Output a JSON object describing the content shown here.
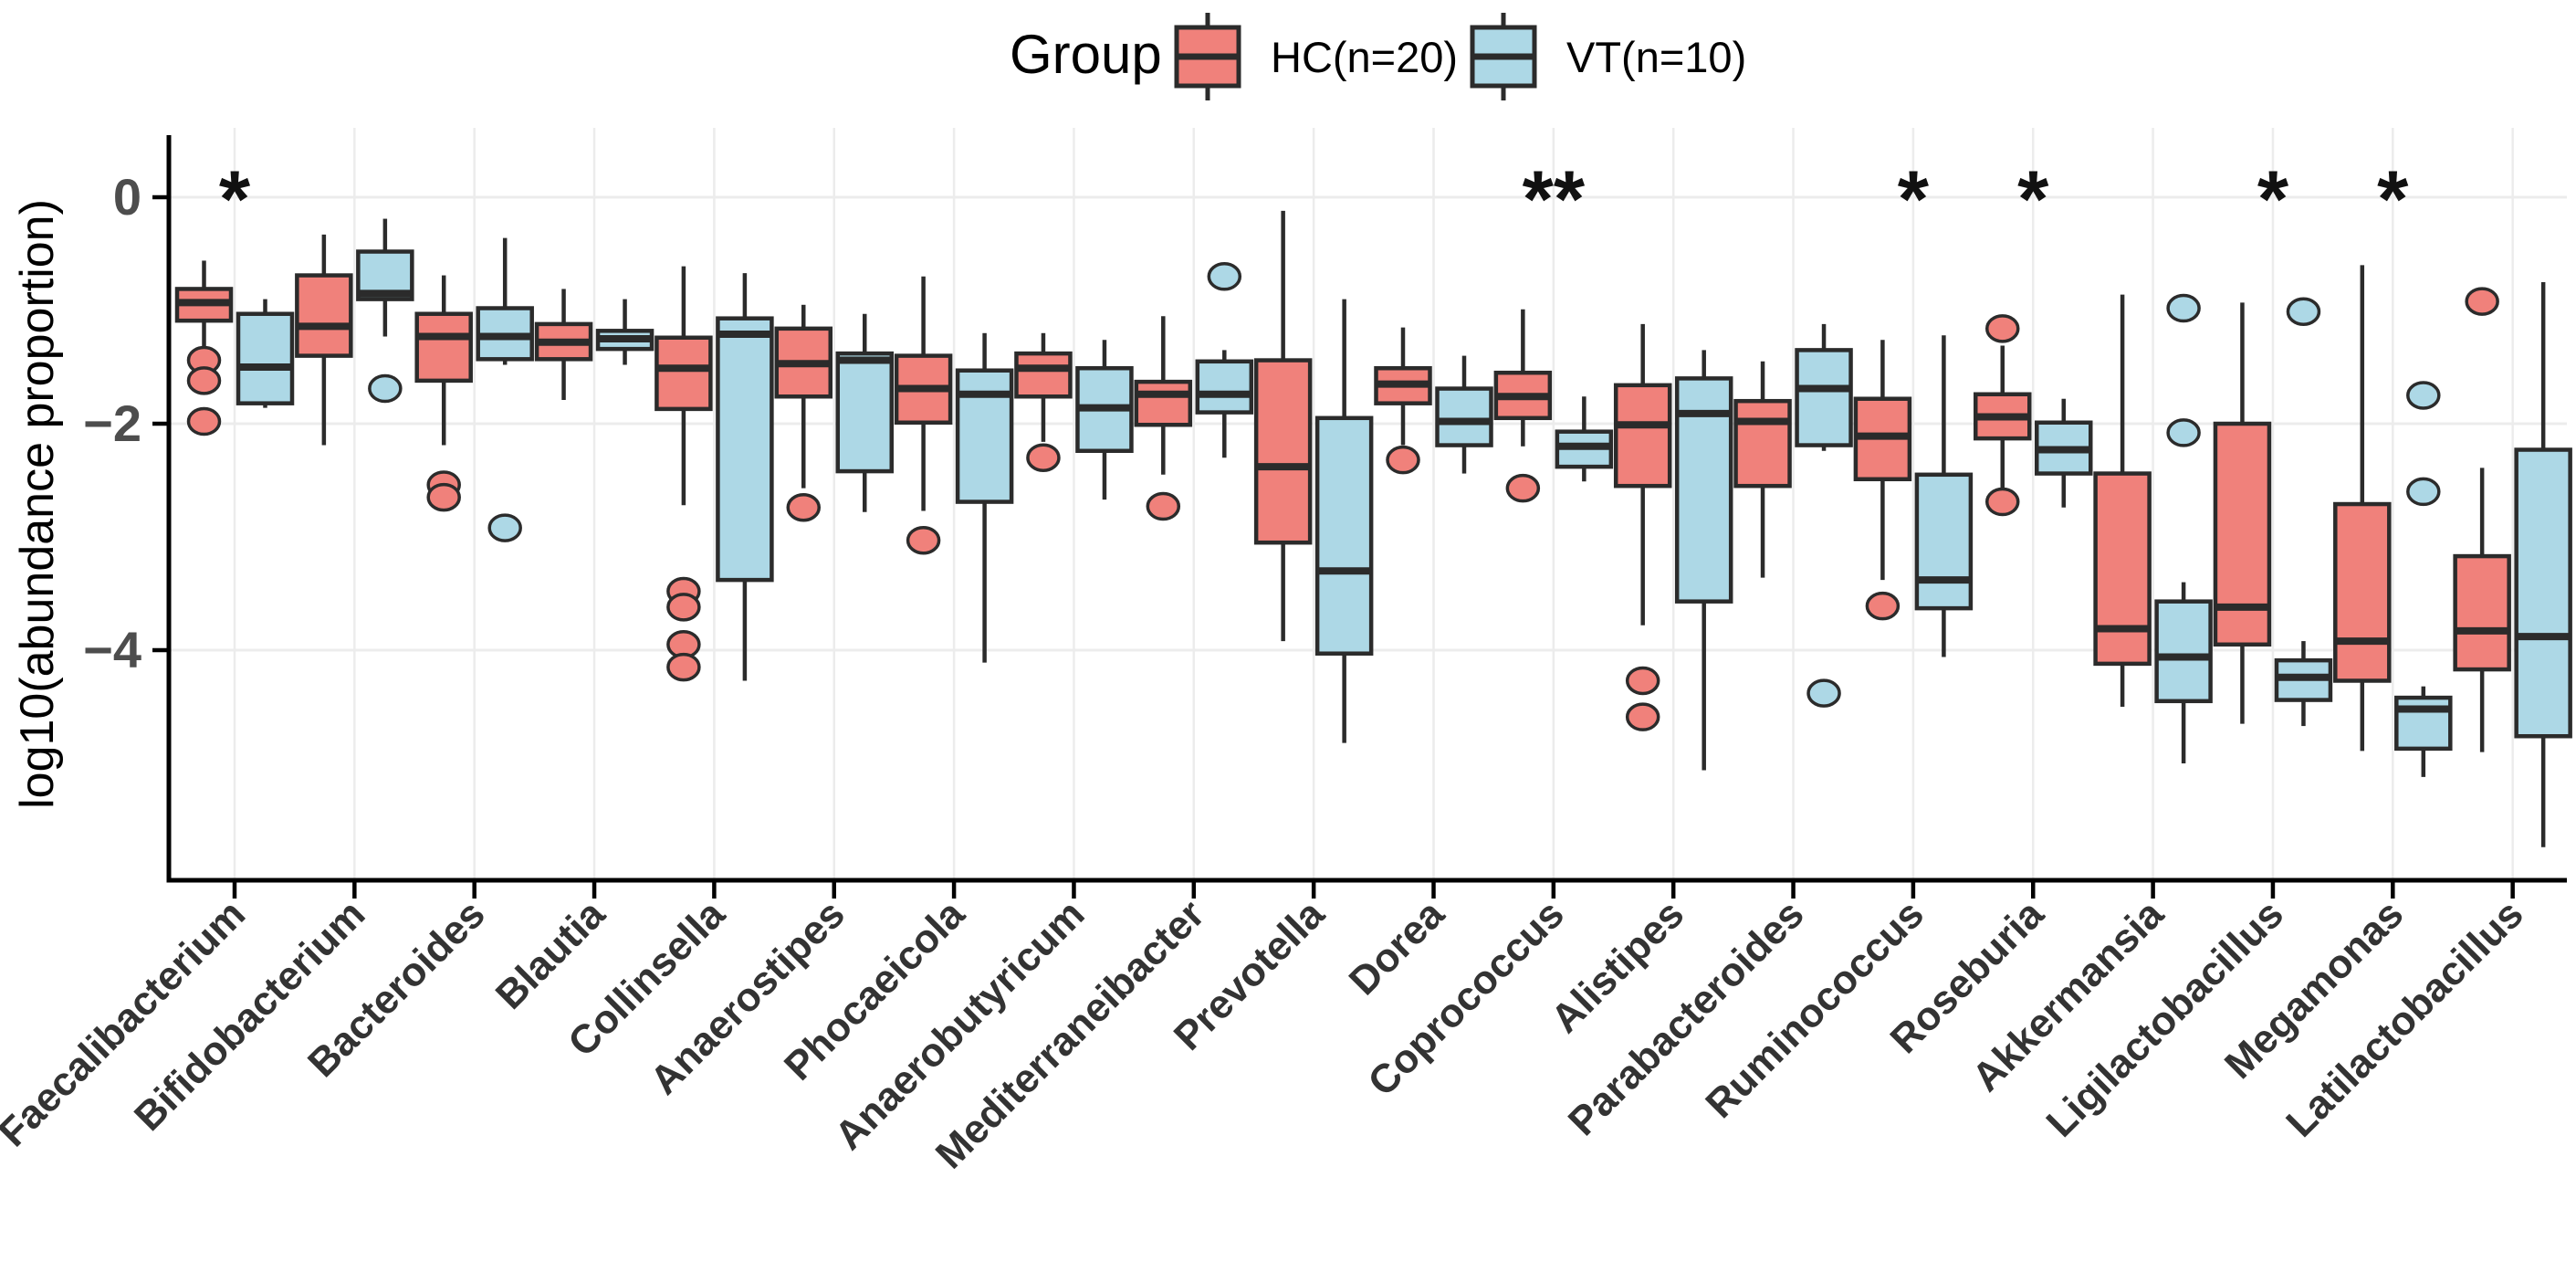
{
  "legend": {
    "title": "Group",
    "position": "top",
    "items": [
      {
        "label": "HC(n=20)",
        "color": "#F0817B"
      },
      {
        "label": "VT(n=10)",
        "color": "#ADD8E6"
      }
    ]
  },
  "axes": {
    "y_title": "log10(abundance proportion)",
    "y_tick_labels": [
      "0",
      "−2",
      "−4"
    ],
    "y_tick_values": [
      0,
      -2,
      -4
    ],
    "grid_color": "#ececec",
    "axis_color": "#000000",
    "tick_label_color": "#4d4d4d",
    "x_label_color": "#333333"
  },
  "chart_data": {
    "type": "boxplot",
    "title": "",
    "xlabel": "",
    "ylabel": "log10(abundance proportion)",
    "ylim": [
      -6.05,
      0.6
    ],
    "grid": "major-only",
    "legend_position": "top",
    "box_border_color": "#2b2b2b",
    "categories": [
      "Faecalibacterium",
      "Bifidobacterium",
      "Bacteroides",
      "Blautia",
      "Collinsella",
      "Anaerostipes",
      "Phocaeicola",
      "Anaerobutyricum",
      "Mediterraneibacter",
      "Prevotella",
      "Dorea",
      "Coprococcus",
      "Alistipes",
      "Parabacteroides",
      "Ruminococcus",
      "Roseburia",
      "Akkermansia",
      "Ligilactobacillus",
      "Megamonas",
      "Latilactobacillus"
    ],
    "significance": [
      "*",
      "",
      "",
      "",
      "",
      "",
      "",
      "",
      "",
      "",
      "",
      "**",
      "",
      "",
      "*",
      "*",
      "",
      "*",
      "*",
      ""
    ],
    "series": [
      {
        "name": "HC(n=20)",
        "color": "#F0817B",
        "boxes": [
          {
            "median": -0.93,
            "q1": -1.09,
            "q3": -0.81,
            "whislo": -1.34,
            "whishi": -0.56,
            "outliers": [
              -1.44,
              -1.62,
              -1.98
            ]
          },
          {
            "median": -1.14,
            "q1": -1.4,
            "q3": -0.69,
            "whislo": -2.19,
            "whishi": -0.33,
            "outliers": []
          },
          {
            "median": -1.23,
            "q1": -1.62,
            "q3": -1.03,
            "whislo": -2.19,
            "whishi": -0.69,
            "outliers": [
              -2.54,
              -2.65
            ]
          },
          {
            "median": -1.28,
            "q1": -1.43,
            "q3": -1.12,
            "whislo": -1.79,
            "whishi": -0.81,
            "outliers": []
          },
          {
            "median": -1.51,
            "q1": -1.87,
            "q3": -1.24,
            "whislo": -2.72,
            "whishi": -0.61,
            "outliers": [
              -3.48,
              -3.62,
              -3.95,
              -4.15
            ]
          },
          {
            "median": -1.47,
            "q1": -1.76,
            "q3": -1.16,
            "whislo": -2.57,
            "whishi": -0.95,
            "outliers": [
              -2.74
            ]
          },
          {
            "median": -1.69,
            "q1": -1.99,
            "q3": -1.4,
            "whislo": -2.77,
            "whishi": -0.7,
            "outliers": [
              -3.03
            ]
          },
          {
            "median": -1.51,
            "q1": -1.76,
            "q3": -1.38,
            "whislo": -2.16,
            "whishi": -1.2,
            "outliers": [
              -2.3
            ]
          },
          {
            "median": -1.74,
            "q1": -2.01,
            "q3": -1.63,
            "whislo": -2.45,
            "whishi": -1.05,
            "outliers": [
              -2.73
            ]
          },
          {
            "median": -2.38,
            "q1": -3.05,
            "q3": -1.44,
            "whislo": -3.92,
            "whishi": -0.12,
            "outliers": []
          },
          {
            "median": -1.65,
            "q1": -1.82,
            "q3": -1.51,
            "whislo": -2.19,
            "whishi": -1.15,
            "outliers": [
              -2.32
            ]
          },
          {
            "median": -1.76,
            "q1": -1.95,
            "q3": -1.55,
            "whislo": -2.2,
            "whishi": -0.99,
            "outliers": [
              -2.57
            ]
          },
          {
            "median": -2.01,
            "q1": -2.55,
            "q3": -1.66,
            "whislo": -3.78,
            "whishi": -1.12,
            "outliers": [
              -4.27,
              -4.59
            ]
          },
          {
            "median": -1.98,
            "q1": -2.55,
            "q3": -1.8,
            "whislo": -3.36,
            "whishi": -1.45,
            "outliers": []
          },
          {
            "median": -2.11,
            "q1": -2.49,
            "q3": -1.78,
            "whislo": -3.38,
            "whishi": -1.26,
            "outliers": [
              -3.61
            ]
          },
          {
            "median": -1.94,
            "q1": -2.13,
            "q3": -1.74,
            "whislo": -2.6,
            "whishi": -1.31,
            "outliers": [
              -1.16,
              -2.69
            ]
          },
          {
            "median": -3.81,
            "q1": -4.12,
            "q3": -2.44,
            "whislo": -4.5,
            "whishi": -0.86,
            "outliers": []
          },
          {
            "median": -3.62,
            "q1": -3.95,
            "q3": -2.0,
            "whislo": -4.65,
            "whishi": -0.93,
            "outliers": []
          },
          {
            "median": -3.92,
            "q1": -4.27,
            "q3": -2.71,
            "whislo": -4.89,
            "whishi": -0.6,
            "outliers": []
          },
          {
            "median": -3.83,
            "q1": -4.17,
            "q3": -3.17,
            "whislo": -4.9,
            "whishi": -2.39,
            "outliers": [
              -0.92
            ]
          }
        ]
      },
      {
        "name": "VT(n=10)",
        "color": "#ADD8E6",
        "boxes": [
          {
            "median": -1.5,
            "q1": -1.82,
            "q3": -1.03,
            "whislo": -1.86,
            "whishi": -0.9,
            "outliers": []
          },
          {
            "median": -0.85,
            "q1": -0.9,
            "q3": -0.48,
            "whislo": -1.23,
            "whishi": -0.19,
            "outliers": [
              -1.69
            ]
          },
          {
            "median": -1.23,
            "q1": -1.43,
            "q3": -0.98,
            "whislo": -1.48,
            "whishi": -0.36,
            "outliers": [
              -2.92
            ]
          },
          {
            "median": -1.25,
            "q1": -1.34,
            "q3": -1.18,
            "whislo": -1.48,
            "whishi": -0.9,
            "outliers": []
          },
          {
            "median": -1.21,
            "q1": -3.38,
            "q3": -1.07,
            "whislo": -4.27,
            "whishi": -0.67,
            "outliers": []
          },
          {
            "median": -1.44,
            "q1": -2.42,
            "q3": -1.38,
            "whislo": -2.78,
            "whishi": -1.03,
            "outliers": []
          },
          {
            "median": -1.74,
            "q1": -2.69,
            "q3": -1.53,
            "whislo": -4.11,
            "whishi": -1.2,
            "outliers": []
          },
          {
            "median": -1.86,
            "q1": -2.24,
            "q3": -1.51,
            "whislo": -2.67,
            "whishi": -1.26,
            "outliers": []
          },
          {
            "median": -1.74,
            "q1": -1.9,
            "q3": -1.45,
            "whislo": -2.3,
            "whishi": -1.35,
            "outliers": [
              -0.7
            ]
          },
          {
            "median": -3.3,
            "q1": -4.03,
            "q3": -1.95,
            "whislo": -4.82,
            "whishi": -0.9,
            "outliers": []
          },
          {
            "median": -1.98,
            "q1": -2.19,
            "q3": -1.69,
            "whislo": -2.44,
            "whishi": -1.4,
            "outliers": []
          },
          {
            "median": -2.2,
            "q1": -2.38,
            "q3": -2.07,
            "whislo": -2.51,
            "whishi": -1.76,
            "outliers": []
          },
          {
            "median": -1.91,
            "q1": -3.57,
            "q3": -1.6,
            "whislo": -5.06,
            "whishi": -1.35,
            "outliers": []
          },
          {
            "median": -1.69,
            "q1": -2.19,
            "q3": -1.35,
            "whislo": -2.24,
            "whishi": -1.12,
            "outliers": [
              -4.38
            ]
          },
          {
            "median": -3.38,
            "q1": -3.63,
            "q3": -2.45,
            "whislo": -4.06,
            "whishi": -1.22,
            "outliers": []
          },
          {
            "median": -2.23,
            "q1": -2.44,
            "q3": -1.99,
            "whislo": -2.74,
            "whishi": -1.78,
            "outliers": []
          },
          {
            "median": -4.06,
            "q1": -4.45,
            "q3": -3.57,
            "whislo": -5.0,
            "whishi": -3.4,
            "outliers": [
              -0.98,
              -2.08
            ]
          },
          {
            "median": -4.24,
            "q1": -4.44,
            "q3": -4.09,
            "whislo": -4.67,
            "whishi": -3.92,
            "outliers": [
              -1.01
            ]
          },
          {
            "median": -4.52,
            "q1": -4.87,
            "q3": -4.42,
            "whislo": -5.12,
            "whishi": -4.32,
            "outliers": [
              -1.75,
              -2.6
            ]
          },
          {
            "median": -3.88,
            "q1": -4.76,
            "q3": -2.23,
            "whislo": -5.74,
            "whishi": -0.75,
            "outliers": []
          }
        ]
      }
    ]
  }
}
